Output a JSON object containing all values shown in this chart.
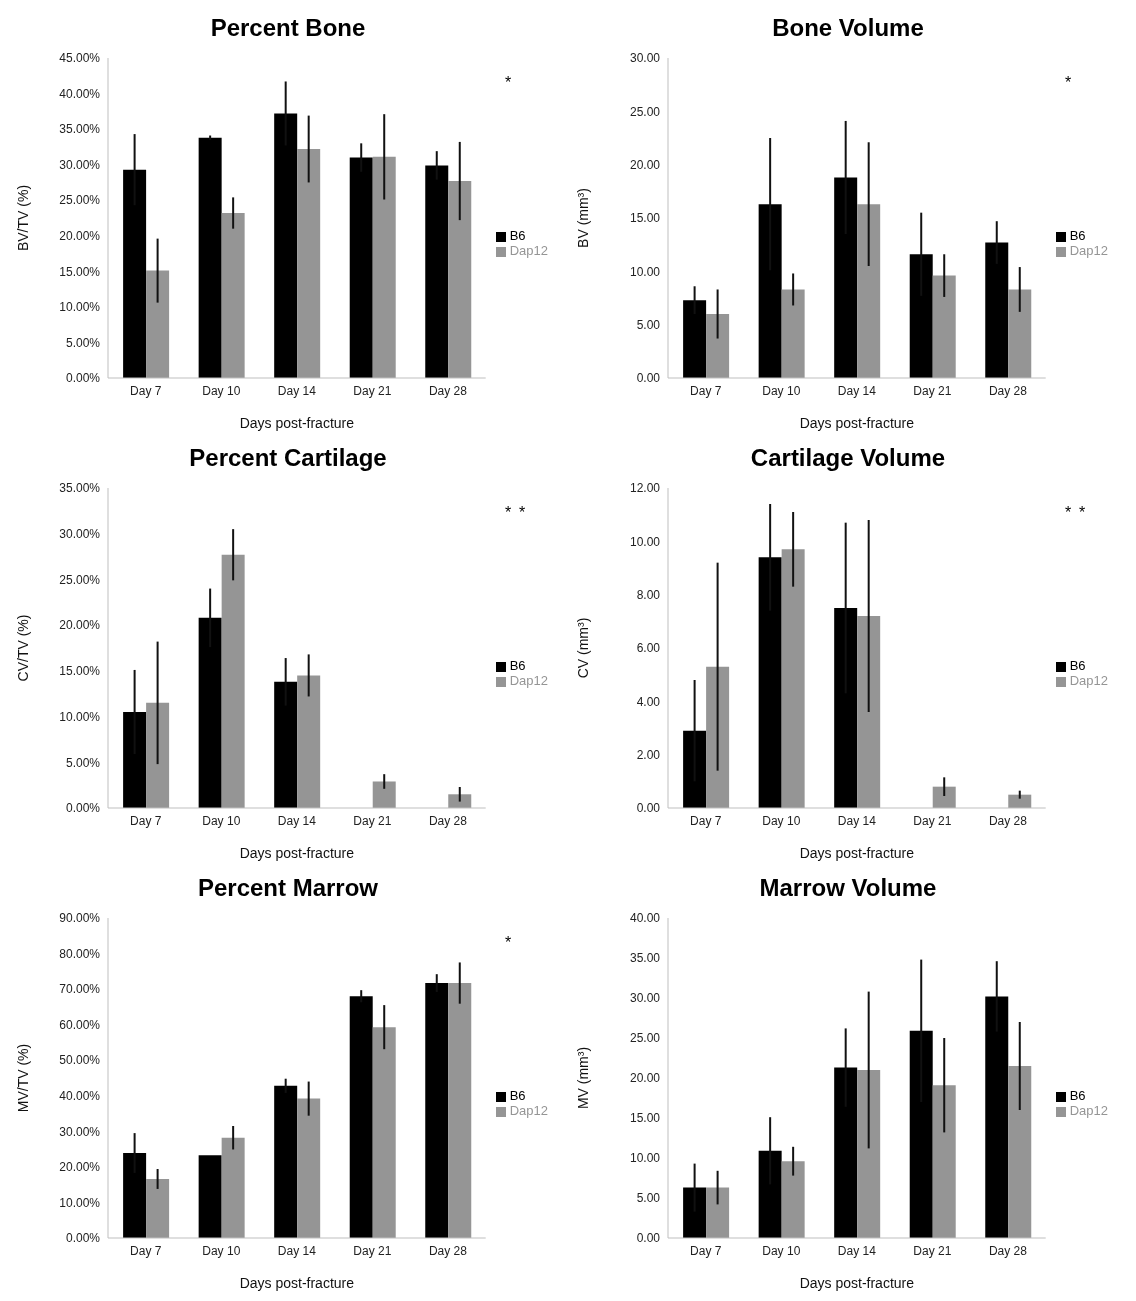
{
  "chart_data": [
    {
      "type": "bar",
      "title": "Percent Bone",
      "xlabel": "Days post-fracture",
      "ylabel": "BV/TV (%)",
      "categories": [
        "Day 7",
        "Day 10",
        "Day 14",
        "Day 21",
        "Day 28"
      ],
      "legend": "right",
      "ylim": [
        0,
        45
      ],
      "yticks": [
        {
          "value": 0,
          "label": "0.00%"
        },
        {
          "value": 5,
          "label": "5.00%"
        },
        {
          "value": 10,
          "label": "10.00%"
        },
        {
          "value": 15,
          "label": "15.00%"
        },
        {
          "value": 20,
          "label": "20.00%"
        },
        {
          "value": 25,
          "label": "25.00%"
        },
        {
          "value": 30,
          "label": "30.00%"
        },
        {
          "value": 35,
          "label": "35.00%"
        },
        {
          "value": 40,
          "label": "40.00%"
        },
        {
          "value": 45,
          "label": "45.00%"
        }
      ],
      "series": [
        {
          "name": "B6",
          "color": "#000000",
          "values": [
            29.3,
            33.8,
            37.2,
            31.0,
            29.9
          ],
          "errors": [
            5,
            0.3,
            4.5,
            2,
            2
          ]
        },
        {
          "name": "Dap12",
          "color": "#959595",
          "values": [
            15.1,
            23.2,
            32.2,
            31.1,
            27.7
          ],
          "errors": [
            4.5,
            2.2,
            4.7,
            6,
            5.5
          ]
        }
      ],
      "annotations": [
        "*"
      ]
    },
    {
      "type": "bar",
      "title": "Bone Volume",
      "xlabel": "Days post-fracture",
      "ylabel": "BV (mm³)",
      "categories": [
        "Day 7",
        "Day 10",
        "Day 14",
        "Day 21",
        "Day 28"
      ],
      "legend": "right",
      "ylim": [
        0,
        30
      ],
      "yticks": [
        {
          "value": 0,
          "label": "0.00"
        },
        {
          "value": 5,
          "label": "5.00"
        },
        {
          "value": 10,
          "label": "10.00"
        },
        {
          "value": 15,
          "label": "15.00"
        },
        {
          "value": 20,
          "label": "20.00"
        },
        {
          "value": 25,
          "label": "25.00"
        },
        {
          "value": 30,
          "label": "30.00"
        }
      ],
      "series": [
        {
          "name": "B6",
          "color": "#000000",
          "values": [
            7.3,
            16.3,
            18.8,
            11.6,
            12.7
          ],
          "errors": [
            1.3,
            6.2,
            5.3,
            3.9,
            2.0
          ]
        },
        {
          "name": "Dap12",
          "color": "#959595",
          "values": [
            6.0,
            8.3,
            16.3,
            9.6,
            8.3
          ],
          "errors": [
            2.3,
            1.5,
            5.8,
            2,
            2.1
          ]
        }
      ],
      "annotations": [
        "*"
      ]
    },
    {
      "type": "bar",
      "title": "Percent Cartilage",
      "xlabel": "Days post-fracture",
      "ylabel": "CV/TV (%)",
      "categories": [
        "Day 7",
        "Day 10",
        "Day 14",
        "Day 21",
        "Day 28"
      ],
      "legend": "right",
      "ylim": [
        0,
        35
      ],
      "yticks": [
        {
          "value": 0,
          "label": "0.00%"
        },
        {
          "value": 5,
          "label": "5.00%"
        },
        {
          "value": 10,
          "label": "10.00%"
        },
        {
          "value": 15,
          "label": "15.00%"
        },
        {
          "value": 20,
          "label": "20.00%"
        },
        {
          "value": 25,
          "label": "25.00%"
        },
        {
          "value": 30,
          "label": "30.00%"
        },
        {
          "value": 35,
          "label": "35.00%"
        }
      ],
      "series": [
        {
          "name": "B6",
          "color": "#000000",
          "values": [
            10.5,
            20.8,
            13.8,
            null,
            null
          ],
          "errors": [
            4.6,
            3.2,
            2.6,
            null,
            null
          ]
        },
        {
          "name": "Dap12",
          "color": "#959595",
          "values": [
            11.5,
            27.7,
            14.5,
            2.9,
            1.5
          ],
          "errors": [
            6.7,
            2.8,
            2.3,
            0.8,
            0.8
          ]
        }
      ],
      "annotations": [
        "*",
        "*"
      ]
    },
    {
      "type": "bar",
      "title": "Cartilage Volume",
      "xlabel": "Days post-fracture",
      "ylabel": "CV (mm³)",
      "categories": [
        "Day 7",
        "Day 10",
        "Day 14",
        "Day 21",
        "Day 28"
      ],
      "legend": "right",
      "ylim": [
        0,
        12
      ],
      "yticks": [
        {
          "value": 0,
          "label": "0.00"
        },
        {
          "value": 2,
          "label": "2.00"
        },
        {
          "value": 4,
          "label": "4.00"
        },
        {
          "value": 6,
          "label": "6.00"
        },
        {
          "value": 8,
          "label": "8.00"
        },
        {
          "value": 10,
          "label": "10.00"
        },
        {
          "value": 12,
          "label": "12.00"
        }
      ],
      "series": [
        {
          "name": "B6",
          "color": "#000000",
          "values": [
            2.9,
            9.4,
            7.5,
            null,
            null
          ],
          "errors": [
            1.9,
            2.0,
            3.2,
            null,
            null
          ]
        },
        {
          "name": "Dap12",
          "color": "#959595",
          "values": [
            5.3,
            9.7,
            7.2,
            0.8,
            0.5
          ],
          "errors": [
            3.9,
            1.4,
            3.6,
            0.35,
            0.15
          ]
        }
      ],
      "annotations": [
        "*",
        "*"
      ]
    },
    {
      "type": "bar",
      "title": "Percent Marrow",
      "xlabel": "Days post-fracture",
      "ylabel": "MV/TV (%)",
      "categories": [
        "Day 7",
        "Day 10",
        "Day 14",
        "Day 21",
        "Day 28"
      ],
      "legend": "right",
      "ylim": [
        0,
        90
      ],
      "yticks": [
        {
          "value": 0,
          "label": "0.00%"
        },
        {
          "value": 10,
          "label": "10.00%"
        },
        {
          "value": 20,
          "label": "20.00%"
        },
        {
          "value": 30,
          "label": "30.00%"
        },
        {
          "value": 40,
          "label": "40.00%"
        },
        {
          "value": 50,
          "label": "50.00%"
        },
        {
          "value": 60,
          "label": "60.00%"
        },
        {
          "value": 70,
          "label": "70.00%"
        },
        {
          "value": 80,
          "label": "80.00%"
        },
        {
          "value": 90,
          "label": "90.00%"
        }
      ],
      "series": [
        {
          "name": "B6",
          "color": "#000000",
          "values": [
            23.9,
            23.3,
            42.8,
            68.0,
            71.7
          ],
          "errors": [
            5.6,
            null,
            2,
            1.7,
            2.5
          ]
        },
        {
          "name": "Dap12",
          "color": "#959595",
          "values": [
            16.6,
            28.2,
            39.2,
            59.3,
            71.7
          ],
          "errors": [
            2.8,
            3.3,
            4.8,
            6.2,
            5.8
          ]
        }
      ],
      "annotations": [
        "*"
      ]
    },
    {
      "type": "bar",
      "title": "Marrow Volume",
      "xlabel": "Days post-fracture",
      "ylabel": "MV (mm³)",
      "categories": [
        "Day 7",
        "Day 10",
        "Day 14",
        "Day 21",
        "Day 28"
      ],
      "legend": "right",
      "ylim": [
        0,
        40
      ],
      "yticks": [
        {
          "value": 0,
          "label": "0.00"
        },
        {
          "value": 5,
          "label": "5.00"
        },
        {
          "value": 10,
          "label": "10.00"
        },
        {
          "value": 15,
          "label": "15.00"
        },
        {
          "value": 20,
          "label": "20.00"
        },
        {
          "value": 25,
          "label": "25.00"
        },
        {
          "value": 30,
          "label": "30.00"
        },
        {
          "value": 35,
          "label": "35.00"
        },
        {
          "value": 40,
          "label": "40.00"
        }
      ],
      "series": [
        {
          "name": "B6",
          "color": "#000000",
          "values": [
            6.3,
            10.9,
            21.3,
            25.9,
            30.2
          ],
          "errors": [
            3.0,
            4.2,
            4.9,
            8.9,
            4.4
          ]
        },
        {
          "name": "Dap12",
          "color": "#959595",
          "values": [
            6.3,
            9.6,
            21.0,
            19.1,
            21.5
          ],
          "errors": [
            2.1,
            1.8,
            9.8,
            5.9,
            5.5
          ]
        }
      ]
    }
  ]
}
